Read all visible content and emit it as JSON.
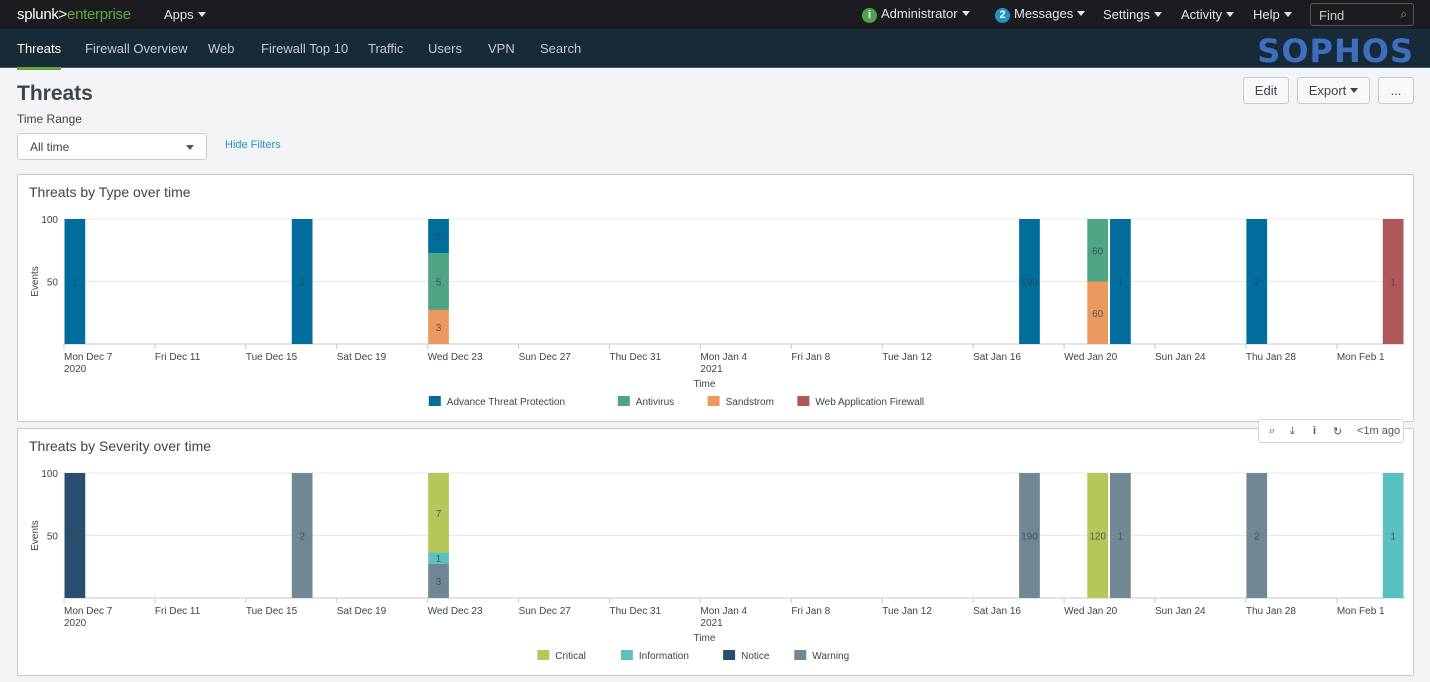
{
  "topbar": {
    "logo_a": "splunk>",
    "logo_b": "enterprise",
    "apps": "Apps",
    "admin": "Administrator",
    "admin_badge": "i",
    "messages": "Messages",
    "messages_count": "2",
    "settings": "Settings",
    "activity": "Activity",
    "help": "Help",
    "find_placeholder": "Find"
  },
  "nav": {
    "items": [
      "Threats",
      "Firewall Overview",
      "Web",
      "Firewall Top 10",
      "Traffic",
      "Users",
      "VPN",
      "Search"
    ],
    "brand": "SOPHOS"
  },
  "page": {
    "title": "Threats",
    "edit": "Edit",
    "export": "Export",
    "more": "...",
    "time_range_label": "Time Range",
    "time_range_value": "All time",
    "hide_filters": "Hide Filters"
  },
  "panel_tools": {
    "last_refresh": "<1m ago"
  },
  "chart_data": [
    {
      "type": "bar",
      "stacking": "stacked100",
      "title": "Threats by Type over time",
      "xlabel": "Time",
      "ylabel": "Events",
      "ylim": [
        0,
        100
      ],
      "yticks": [
        "100",
        "50"
      ],
      "xlim": [
        "2020-12-07",
        "2021-02-04"
      ],
      "xticks": [
        [
          "Mon Dec 7",
          "2020"
        ],
        [
          "Fri Dec 11",
          ""
        ],
        [
          "Tue Dec 15",
          ""
        ],
        [
          "Sat Dec 19",
          ""
        ],
        [
          "Wed Dec 23",
          ""
        ],
        [
          "Sun Dec 27",
          ""
        ],
        [
          "Thu Dec 31",
          ""
        ],
        [
          "Mon Jan 4",
          "2021"
        ],
        [
          "Fri Jan 8",
          ""
        ],
        [
          "Tue Jan 12",
          ""
        ],
        [
          "Sat Jan 16",
          ""
        ],
        [
          "Wed Jan 20",
          ""
        ],
        [
          "Sun Jan 24",
          ""
        ],
        [
          "Thu Jan 28",
          ""
        ],
        [
          "Mon Feb 1",
          ""
        ]
      ],
      "legend_position": "bottom",
      "x": [
        "2020-12-07",
        "2020-12-17",
        "2020-12-23",
        "2021-01-18",
        "2021-01-21",
        "2021-01-22",
        "2021-01-28",
        "2021-02-03"
      ],
      "series": [
        {
          "name": "Sandstrom",
          "color": "#ec9960",
          "values": [
            0,
            0,
            3,
            0,
            60,
            0,
            0,
            0
          ]
        },
        {
          "name": "Antivirus",
          "color": "#4fa484",
          "values": [
            0,
            0,
            5,
            0,
            60,
            0,
            0,
            0
          ]
        },
        {
          "name": "Advance Threat Protection",
          "color": "#006d9c",
          "values": [
            1,
            2,
            3,
            190,
            0,
            1,
            2,
            0
          ]
        },
        {
          "name": "Web Application Firewall",
          "color": "#af575a",
          "values": [
            0,
            0,
            0,
            0,
            0,
            0,
            0,
            1
          ]
        }
      ],
      "legend_order": [
        "Advance Threat Protection",
        "Antivirus",
        "Sandstrom",
        "Web Application Firewall"
      ]
    },
    {
      "type": "bar",
      "stacking": "stacked100",
      "title": "Threats by Severity over time",
      "xlabel": "Time",
      "ylabel": "Events",
      "ylim": [
        0,
        100
      ],
      "yticks": [
        "100",
        "50"
      ],
      "xlim": [
        "2020-12-07",
        "2021-02-04"
      ],
      "xticks": [
        [
          "Mon Dec 7",
          "2020"
        ],
        [
          "Fri Dec 11",
          ""
        ],
        [
          "Tue Dec 15",
          ""
        ],
        [
          "Sat Dec 19",
          ""
        ],
        [
          "Wed Dec 23",
          ""
        ],
        [
          "Sun Dec 27",
          ""
        ],
        [
          "Thu Dec 31",
          ""
        ],
        [
          "Mon Jan 4",
          "2021"
        ],
        [
          "Fri Jan 8",
          ""
        ],
        [
          "Tue Jan 12",
          ""
        ],
        [
          "Sat Jan 16",
          ""
        ],
        [
          "Wed Jan 20",
          ""
        ],
        [
          "Sun Jan 24",
          ""
        ],
        [
          "Thu Jan 28",
          ""
        ],
        [
          "Mon Feb 1",
          ""
        ]
      ],
      "legend_position": "bottom",
      "x": [
        "2020-12-07",
        "2020-12-17",
        "2020-12-23",
        "2021-01-18",
        "2021-01-21",
        "2021-01-22",
        "2021-01-28",
        "2021-02-03"
      ],
      "series": [
        {
          "name": "Warning",
          "color": "#708794",
          "values": [
            0,
            2,
            3,
            190,
            0,
            1,
            2,
            0
          ]
        },
        {
          "name": "Information",
          "color": "#5cc0c0",
          "values": [
            0,
            0,
            1,
            0,
            0,
            0,
            0,
            1
          ]
        },
        {
          "name": "Critical",
          "color": "#b6c75a",
          "values": [
            0,
            0,
            7,
            0,
            120,
            0,
            0,
            0
          ]
        },
        {
          "name": "Notice",
          "color": "#294e70",
          "values": [
            1,
            0,
            0,
            0,
            0,
            0,
            0,
            0
          ]
        }
      ],
      "legend_order": [
        "Critical",
        "Information",
        "Notice",
        "Warning"
      ]
    }
  ]
}
